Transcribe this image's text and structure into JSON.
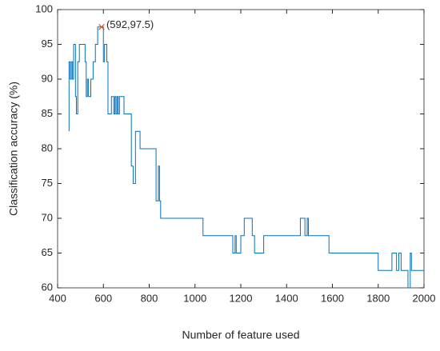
{
  "chart_data": {
    "type": "line",
    "xlabel": "Number of feature used",
    "ylabel": "Classification accuracy (%)",
    "color": "#0072bd",
    "x": [
      450,
      450,
      455,
      455,
      460,
      460,
      465,
      465,
      470,
      470,
      478,
      478,
      482,
      482,
      488,
      488,
      495,
      495,
      520,
      520,
      525,
      525,
      530,
      530,
      535,
      535,
      545,
      545,
      555,
      555,
      565,
      565,
      575,
      575,
      600,
      600,
      605,
      605,
      615,
      615,
      620,
      620,
      635,
      635,
      645,
      645,
      650,
      650,
      655,
      655,
      660,
      660,
      665,
      665,
      670,
      670,
      690,
      690,
      722,
      722,
      730,
      730,
      740,
      740,
      760,
      760,
      830,
      830,
      840,
      840,
      845,
      845,
      850,
      850,
      1035,
      1035,
      1165,
      1165,
      1175,
      1175,
      1180,
      1180,
      1200,
      1200,
      1215,
      1215,
      1250,
      1250,
      1260,
      1260,
      1300,
      1300,
      1460,
      1460,
      1480,
      1480,
      1490,
      1490,
      1495,
      1495,
      1585,
      1585,
      1800,
      1800,
      1860,
      1860,
      1880,
      1880,
      1890,
      1890,
      1900,
      1900,
      1930,
      1930,
      1940,
      1940,
      1945,
      1945,
      2000
    ],
    "values": [
      82.5,
      92.5,
      92.5,
      90,
      90,
      92.5,
      92.5,
      90,
      90,
      95,
      95,
      87.5,
      87.5,
      85,
      85,
      92.5,
      92.5,
      95,
      95,
      92.5,
      92.5,
      87.5,
      87.5,
      90,
      90,
      87.5,
      87.5,
      90,
      90,
      92.5,
      92.5,
      95,
      95,
      97.5,
      97.5,
      92.5,
      92.5,
      95,
      95,
      92.5,
      92.5,
      85,
      85,
      87.5,
      87.5,
      85,
      85,
      87.5,
      87.5,
      85,
      85,
      87.5,
      87.5,
      85,
      85,
      87.5,
      87.5,
      85,
      85,
      77.5,
      77.5,
      75,
      75,
      82.5,
      82.5,
      80,
      80,
      72.5,
      72.5,
      77.5,
      77.5,
      72.5,
      72.5,
      70,
      70,
      67.5,
      67.5,
      65,
      65,
      67.5,
      67.5,
      65,
      65,
      67.5,
      67.5,
      70,
      70,
      67.5,
      67.5,
      65,
      65,
      67.5,
      67.5,
      70,
      70,
      67.5,
      67.5,
      70,
      70,
      67.5,
      67.5,
      65,
      65,
      62.5,
      62.5,
      65,
      65,
      62.5,
      62.5,
      65,
      65,
      62.5,
      62.5,
      60,
      60,
      65,
      65,
      62.5,
      62.5
    ],
    "annotation": {
      "x": 592,
      "y": 97.5,
      "label": "(592,97.5)",
      "color": "#d95319"
    },
    "xlim": [
      400,
      2000
    ],
    "xticks": [
      400,
      600,
      800,
      1000,
      1200,
      1400,
      1600,
      1800,
      2000
    ],
    "ylim": [
      60,
      100
    ],
    "yticks": [
      60,
      65,
      70,
      75,
      80,
      85,
      90,
      95,
      100
    ]
  }
}
